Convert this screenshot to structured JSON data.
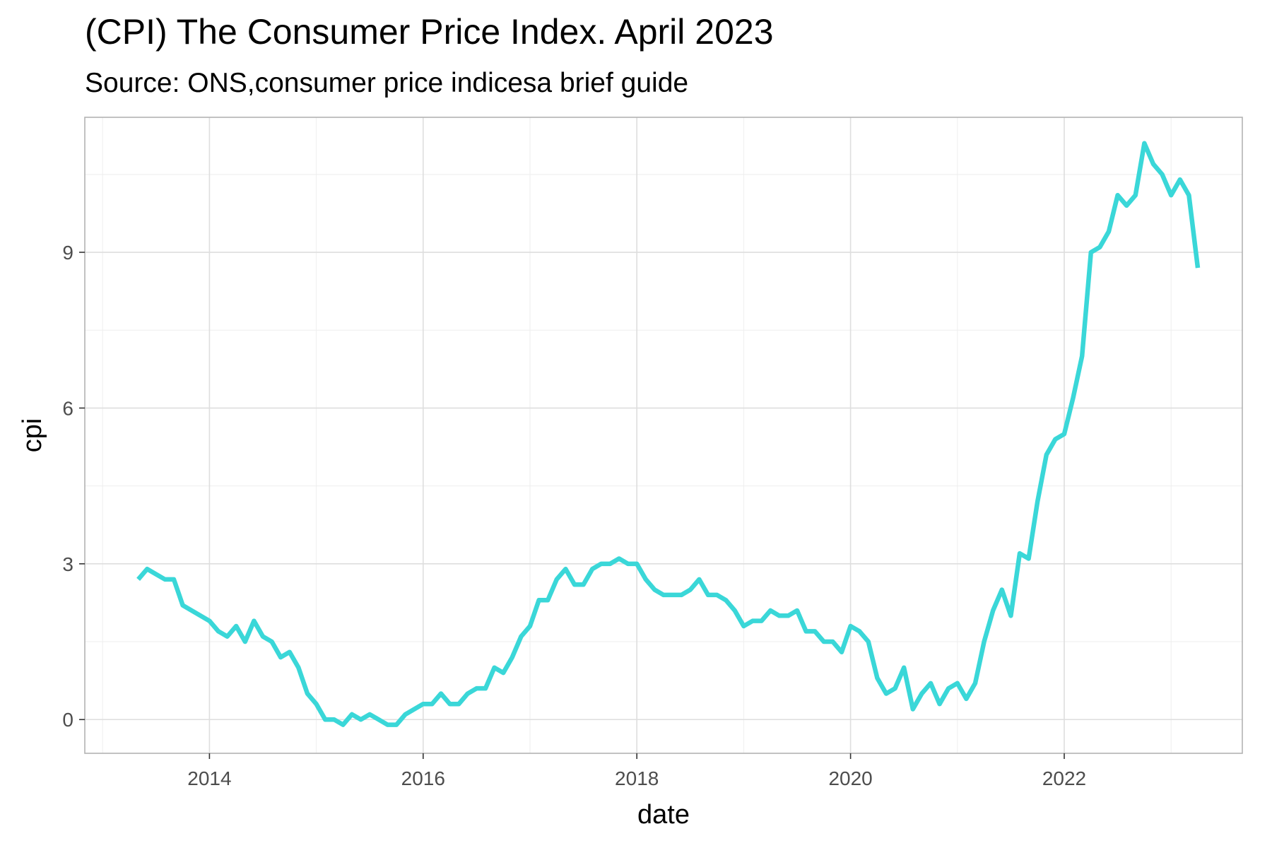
{
  "chart_data": {
    "type": "line",
    "title": "(CPI) The Consumer Price Index. April 2023",
    "subtitle": "Source: ONS,consumer price indicesa brief guide",
    "xlabel": "date",
    "ylabel": "cpi",
    "x_ticks": [
      "2014",
      "2016",
      "2018",
      "2020",
      "2022"
    ],
    "y_ticks": [
      "0",
      "3",
      "6",
      "9"
    ],
    "xlim": [
      "2012-11-01",
      "2023-09-01"
    ],
    "ylim": [
      -0.65,
      11.6
    ],
    "grid": true,
    "legend": "none",
    "line_color": "#3ad7d8",
    "series": [
      {
        "x": [
          "2013-05",
          "2013-06",
          "2013-07",
          "2013-08",
          "2013-09",
          "2013-10",
          "2013-11",
          "2013-12",
          "2014-01",
          "2014-02",
          "2014-03",
          "2014-04",
          "2014-05",
          "2014-06",
          "2014-07",
          "2014-08",
          "2014-09",
          "2014-10",
          "2014-11",
          "2014-12",
          "2015-01",
          "2015-02",
          "2015-03",
          "2015-04",
          "2015-05",
          "2015-06",
          "2015-07",
          "2015-08",
          "2015-09",
          "2015-10",
          "2015-11",
          "2015-12",
          "2016-01",
          "2016-02",
          "2016-03",
          "2016-04",
          "2016-05",
          "2016-06",
          "2016-07",
          "2016-08",
          "2016-09",
          "2016-10",
          "2016-11",
          "2016-12",
          "2017-01",
          "2017-02",
          "2017-03",
          "2017-04",
          "2017-05",
          "2017-06",
          "2017-07",
          "2017-08",
          "2017-09",
          "2017-10",
          "2017-11",
          "2017-12",
          "2018-01",
          "2018-02",
          "2018-03",
          "2018-04",
          "2018-05",
          "2018-06",
          "2018-07",
          "2018-08",
          "2018-09",
          "2018-10",
          "2018-11",
          "2018-12",
          "2019-01",
          "2019-02",
          "2019-03",
          "2019-04",
          "2019-05",
          "2019-06",
          "2019-07",
          "2019-08",
          "2019-09",
          "2019-10",
          "2019-11",
          "2019-12",
          "2020-01",
          "2020-02",
          "2020-03",
          "2020-04",
          "2020-05",
          "2020-06",
          "2020-07",
          "2020-08",
          "2020-09",
          "2020-10",
          "2020-11",
          "2020-12",
          "2021-01",
          "2021-02",
          "2021-03",
          "2021-04",
          "2021-05",
          "2021-06",
          "2021-07",
          "2021-08",
          "2021-09",
          "2021-10",
          "2021-11",
          "2021-12",
          "2022-01",
          "2022-02",
          "2022-03",
          "2022-04",
          "2022-05",
          "2022-06",
          "2022-07",
          "2022-08",
          "2022-09",
          "2022-10",
          "2022-11",
          "2022-12",
          "2023-01",
          "2023-02",
          "2023-03",
          "2023-04"
        ],
        "y": [
          2.7,
          2.9,
          2.8,
          2.7,
          2.7,
          2.2,
          2.1,
          2.0,
          1.9,
          1.7,
          1.6,
          1.8,
          1.5,
          1.9,
          1.6,
          1.5,
          1.2,
          1.3,
          1.0,
          0.5,
          0.3,
          0.0,
          0.0,
          -0.1,
          0.1,
          0.0,
          0.1,
          0.0,
          -0.1,
          -0.1,
          0.1,
          0.2,
          0.3,
          0.3,
          0.5,
          0.3,
          0.3,
          0.5,
          0.6,
          0.6,
          1.0,
          0.9,
          1.2,
          1.6,
          1.8,
          2.3,
          2.3,
          2.7,
          2.9,
          2.6,
          2.6,
          2.9,
          3.0,
          3.0,
          3.1,
          3.0,
          3.0,
          2.7,
          2.5,
          2.4,
          2.4,
          2.4,
          2.5,
          2.7,
          2.4,
          2.4,
          2.3,
          2.1,
          1.8,
          1.9,
          1.9,
          2.1,
          2.0,
          2.0,
          2.1,
          1.7,
          1.7,
          1.5,
          1.5,
          1.3,
          1.8,
          1.7,
          1.5,
          0.8,
          0.5,
          0.6,
          1.0,
          0.2,
          0.5,
          0.7,
          0.3,
          0.6,
          0.7,
          0.4,
          0.7,
          1.5,
          2.1,
          2.5,
          2.0,
          3.2,
          3.1,
          4.2,
          5.1,
          5.4,
          5.5,
          6.2,
          7.0,
          9.0,
          9.1,
          9.4,
          10.1,
          9.9,
          10.1,
          11.1,
          10.7,
          10.5,
          10.1,
          10.4,
          10.1,
          8.7
        ]
      }
    ]
  }
}
